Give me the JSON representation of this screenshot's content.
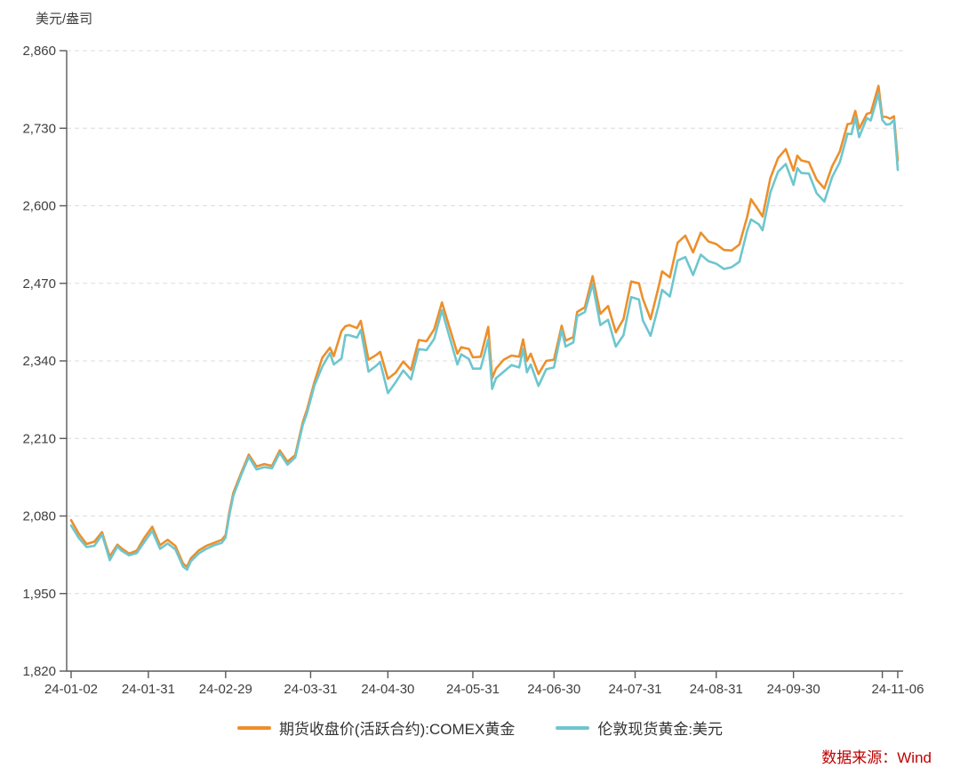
{
  "unit_label": "美元/盎司",
  "source": "数据来源：Wind",
  "colors": {
    "futures_line": "#ED8F2B",
    "spot_line": "#6EC6CE",
    "axis": "#595959",
    "grid": "#dcdcdc",
    "tick_text": "#3f3f3f",
    "legend_text": "#333333",
    "source_text": "#c00000",
    "background": "#ffffff"
  },
  "legend": [
    {
      "label": "期货收盘价(活跃合约):COMEX黄金",
      "color": "#ED8F2B"
    },
    {
      "label": "伦敦现货黄金:美元",
      "color": "#6EC6CE"
    }
  ],
  "chart_data": {
    "type": "line",
    "title": "",
    "xlabel": "",
    "ylabel": "美元/盎司",
    "ylim": [
      1820,
      2860
    ],
    "y_ticks": [
      1820,
      1950,
      2080,
      2210,
      2340,
      2470,
      2600,
      2730,
      2860
    ],
    "x_range": [
      0,
      214
    ],
    "x_unit": "trading-day index (2024-01-02 .. 2024-11-06)",
    "x_ticks": [
      {
        "t": 0,
        "label": "24-01-02"
      },
      {
        "t": 20,
        "label": "24-01-31"
      },
      {
        "t": 40,
        "label": "24-02-29"
      },
      {
        "t": 62,
        "label": "24-03-31"
      },
      {
        "t": 82,
        "label": "24-04-30"
      },
      {
        "t": 104,
        "label": "24-05-31"
      },
      {
        "t": 125,
        "label": "24-06-30"
      },
      {
        "t": 146,
        "label": "24-07-31"
      },
      {
        "t": 167,
        "label": "24-08-31"
      },
      {
        "t": 187,
        "label": "24-09-30"
      },
      {
        "t": 210,
        "label": ""
      },
      {
        "t": 214,
        "label": "24-11-06"
      }
    ],
    "grid": "horizontal-dashed",
    "legend_position": "bottom-center",
    "series": [
      {
        "name": "期货收盘价(活跃合约):COMEX黄金",
        "color": "#ED8F2B",
        "points": [
          [
            0,
            2073
          ],
          [
            2,
            2050
          ],
          [
            4,
            2033
          ],
          [
            6,
            2037
          ],
          [
            8,
            2053
          ],
          [
            9,
            2032
          ],
          [
            10,
            2012
          ],
          [
            12,
            2032
          ],
          [
            13,
            2026
          ],
          [
            15,
            2017
          ],
          [
            17,
            2022
          ],
          [
            19,
            2044
          ],
          [
            21,
            2062
          ],
          [
            23,
            2031
          ],
          [
            25,
            2040
          ],
          [
            27,
            2030
          ],
          [
            29,
            2000
          ],
          [
            30,
            1995
          ],
          [
            31,
            2009
          ],
          [
            33,
            2022
          ],
          [
            35,
            2030
          ],
          [
            37,
            2035
          ],
          [
            39,
            2040
          ],
          [
            40,
            2048
          ],
          [
            41,
            2088
          ],
          [
            42,
            2119
          ],
          [
            44,
            2152
          ],
          [
            46,
            2183
          ],
          [
            48,
            2163
          ],
          [
            50,
            2167
          ],
          [
            52,
            2164
          ],
          [
            54,
            2190
          ],
          [
            56,
            2171
          ],
          [
            58,
            2182
          ],
          [
            60,
            2238
          ],
          [
            61,
            2257
          ],
          [
            63,
            2305
          ],
          [
            65,
            2345
          ],
          [
            67,
            2362
          ],
          [
            68,
            2348
          ],
          [
            70,
            2390
          ],
          [
            71,
            2398
          ],
          [
            72,
            2400
          ],
          [
            74,
            2395
          ],
          [
            75,
            2407
          ],
          [
            77,
            2342
          ],
          [
            79,
            2350
          ],
          [
            80,
            2355
          ],
          [
            82,
            2310
          ],
          [
            84,
            2320
          ],
          [
            86,
            2339
          ],
          [
            88,
            2325
          ],
          [
            90,
            2375
          ],
          [
            92,
            2373
          ],
          [
            94,
            2393
          ],
          [
            96,
            2438
          ],
          [
            98,
            2395
          ],
          [
            100,
            2352
          ],
          [
            101,
            2363
          ],
          [
            103,
            2360
          ],
          [
            104,
            2346
          ],
          [
            106,
            2347
          ],
          [
            108,
            2397
          ],
          [
            109,
            2311
          ],
          [
            110,
            2327
          ],
          [
            112,
            2342
          ],
          [
            114,
            2349
          ],
          [
            116,
            2347
          ],
          [
            117,
            2376
          ],
          [
            118,
            2340
          ],
          [
            119,
            2352
          ],
          [
            121,
            2318
          ],
          [
            123,
            2340
          ],
          [
            125,
            2342
          ],
          [
            127,
            2399
          ],
          [
            128,
            2374
          ],
          [
            130,
            2380
          ],
          [
            131,
            2422
          ],
          [
            133,
            2430
          ],
          [
            135,
            2482
          ],
          [
            137,
            2419
          ],
          [
            139,
            2432
          ],
          [
            141,
            2388
          ],
          [
            143,
            2410
          ],
          [
            145,
            2473
          ],
          [
            147,
            2470
          ],
          [
            148,
            2444
          ],
          [
            150,
            2410
          ],
          [
            152,
            2462
          ],
          [
            153,
            2490
          ],
          [
            155,
            2480
          ],
          [
            157,
            2538
          ],
          [
            159,
            2550
          ],
          [
            161,
            2522
          ],
          [
            163,
            2555
          ],
          [
            165,
            2540
          ],
          [
            167,
            2536
          ],
          [
            169,
            2526
          ],
          [
            171,
            2525
          ],
          [
            173,
            2535
          ],
          [
            175,
            2581
          ],
          [
            176,
            2611
          ],
          [
            178,
            2592
          ],
          [
            179,
            2582
          ],
          [
            181,
            2646
          ],
          [
            183,
            2680
          ],
          [
            185,
            2695
          ],
          [
            187,
            2659
          ],
          [
            188,
            2684
          ],
          [
            189,
            2676
          ],
          [
            191,
            2673
          ],
          [
            193,
            2644
          ],
          [
            195,
            2629
          ],
          [
            197,
            2666
          ],
          [
            199,
            2691
          ],
          [
            201,
            2737
          ],
          [
            202,
            2738
          ],
          [
            203,
            2759
          ],
          [
            204,
            2729
          ],
          [
            206,
            2754
          ],
          [
            207,
            2756
          ],
          [
            209,
            2801
          ],
          [
            210,
            2749
          ],
          [
            211,
            2749
          ],
          [
            212,
            2746
          ],
          [
            213,
            2750
          ],
          [
            214,
            2676
          ]
        ]
      },
      {
        "name": "伦敦现货黄金:美元",
        "color": "#6EC6CE",
        "points": [
          [
            0,
            2064
          ],
          [
            2,
            2043
          ],
          [
            4,
            2028
          ],
          [
            6,
            2030
          ],
          [
            8,
            2049
          ],
          [
            9,
            2028
          ],
          [
            10,
            2006
          ],
          [
            12,
            2029
          ],
          [
            13,
            2022
          ],
          [
            15,
            2014
          ],
          [
            17,
            2018
          ],
          [
            19,
            2037
          ],
          [
            21,
            2055
          ],
          [
            23,
            2025
          ],
          [
            25,
            2034
          ],
          [
            27,
            2024
          ],
          [
            29,
            1995
          ],
          [
            30,
            1990
          ],
          [
            31,
            2004
          ],
          [
            33,
            2017
          ],
          [
            35,
            2025
          ],
          [
            37,
            2031
          ],
          [
            39,
            2035
          ],
          [
            40,
            2044
          ],
          [
            41,
            2083
          ],
          [
            42,
            2114
          ],
          [
            44,
            2148
          ],
          [
            46,
            2179
          ],
          [
            48,
            2158
          ],
          [
            50,
            2162
          ],
          [
            52,
            2160
          ],
          [
            54,
            2186
          ],
          [
            56,
            2166
          ],
          [
            58,
            2178
          ],
          [
            60,
            2233
          ],
          [
            61,
            2251
          ],
          [
            63,
            2299
          ],
          [
            65,
            2330
          ],
          [
            67,
            2353
          ],
          [
            68,
            2334
          ],
          [
            70,
            2344
          ],
          [
            71,
            2383
          ],
          [
            72,
            2383
          ],
          [
            74,
            2379
          ],
          [
            75,
            2392
          ],
          [
            77,
            2322
          ],
          [
            79,
            2332
          ],
          [
            80,
            2338
          ],
          [
            82,
            2286
          ],
          [
            84,
            2304
          ],
          [
            86,
            2324
          ],
          [
            88,
            2309
          ],
          [
            90,
            2360
          ],
          [
            92,
            2358
          ],
          [
            94,
            2377
          ],
          [
            96,
            2425
          ],
          [
            98,
            2379
          ],
          [
            100,
            2334
          ],
          [
            101,
            2351
          ],
          [
            103,
            2343
          ],
          [
            104,
            2327
          ],
          [
            106,
            2327
          ],
          [
            108,
            2376
          ],
          [
            109,
            2293
          ],
          [
            110,
            2311
          ],
          [
            112,
            2322
          ],
          [
            114,
            2333
          ],
          [
            116,
            2329
          ],
          [
            117,
            2360
          ],
          [
            118,
            2321
          ],
          [
            119,
            2334
          ],
          [
            121,
            2298
          ],
          [
            123,
            2326
          ],
          [
            125,
            2329
          ],
          [
            127,
            2392
          ],
          [
            128,
            2364
          ],
          [
            130,
            2371
          ],
          [
            131,
            2415
          ],
          [
            133,
            2422
          ],
          [
            135,
            2469
          ],
          [
            137,
            2400
          ],
          [
            139,
            2409
          ],
          [
            141,
            2364
          ],
          [
            143,
            2383
          ],
          [
            145,
            2447
          ],
          [
            147,
            2443
          ],
          [
            148,
            2408
          ],
          [
            150,
            2382
          ],
          [
            152,
            2431
          ],
          [
            153,
            2459
          ],
          [
            155,
            2448
          ],
          [
            157,
            2508
          ],
          [
            159,
            2514
          ],
          [
            161,
            2484
          ],
          [
            163,
            2518
          ],
          [
            165,
            2507
          ],
          [
            167,
            2503
          ],
          [
            169,
            2494
          ],
          [
            171,
            2497
          ],
          [
            173,
            2506
          ],
          [
            175,
            2558
          ],
          [
            176,
            2577
          ],
          [
            178,
            2569
          ],
          [
            179,
            2559
          ],
          [
            181,
            2622
          ],
          [
            183,
            2657
          ],
          [
            185,
            2670
          ],
          [
            187,
            2635
          ],
          [
            188,
            2663
          ],
          [
            189,
            2655
          ],
          [
            191,
            2654
          ],
          [
            193,
            2621
          ],
          [
            195,
            2607
          ],
          [
            197,
            2648
          ],
          [
            199,
            2673
          ],
          [
            201,
            2721
          ],
          [
            202,
            2720
          ],
          [
            203,
            2748
          ],
          [
            204,
            2715
          ],
          [
            206,
            2747
          ],
          [
            207,
            2743
          ],
          [
            209,
            2788
          ],
          [
            210,
            2744
          ],
          [
            211,
            2736
          ],
          [
            212,
            2737
          ],
          [
            213,
            2744
          ],
          [
            214,
            2660
          ]
        ]
      }
    ]
  }
}
